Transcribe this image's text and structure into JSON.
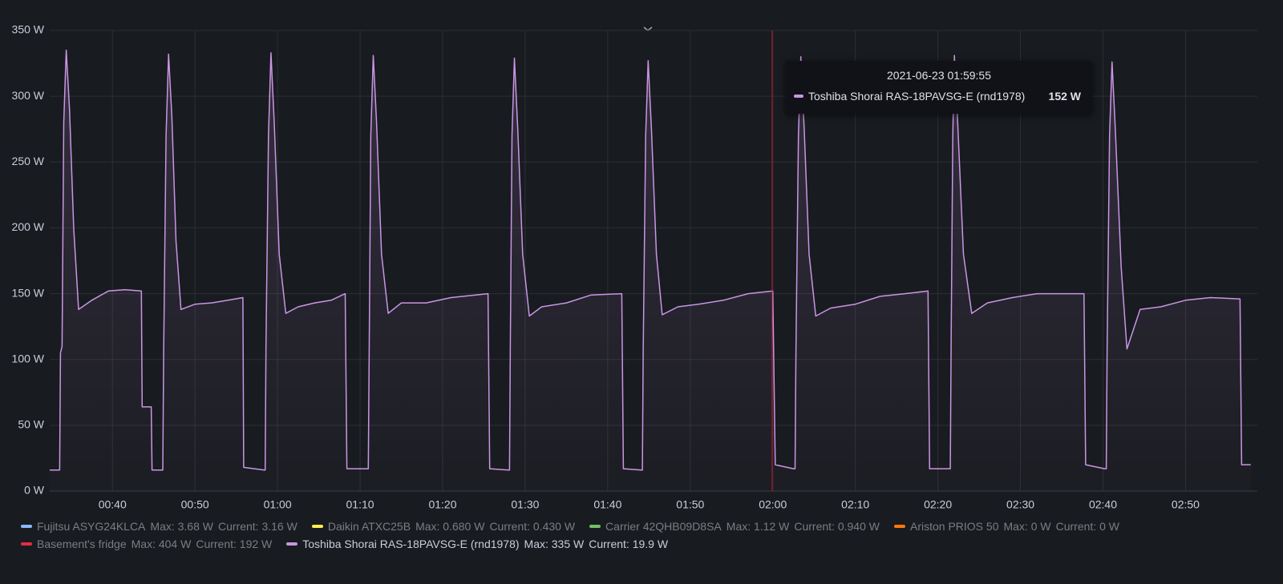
{
  "chart_data": {
    "type": "line",
    "xlim": [
      32.4,
      178.7
    ],
    "ylim": [
      0,
      350
    ],
    "yticks": [
      {
        "value": 0,
        "label": "0 W"
      },
      {
        "value": 50,
        "label": "50 W"
      },
      {
        "value": 100,
        "label": "100 W"
      },
      {
        "value": 150,
        "label": "150 W"
      },
      {
        "value": 200,
        "label": "200 W"
      },
      {
        "value": 250,
        "label": "250 W"
      },
      {
        "value": 300,
        "label": "300 W"
      },
      {
        "value": 350,
        "label": "350 W"
      }
    ],
    "xticks": [
      {
        "value": 40,
        "label": "00:40"
      },
      {
        "value": 50,
        "label": "00:50"
      },
      {
        "value": 60,
        "label": "01:00"
      },
      {
        "value": 70,
        "label": "01:10"
      },
      {
        "value": 80,
        "label": "01:20"
      },
      {
        "value": 90,
        "label": "01:30"
      },
      {
        "value": 100,
        "label": "01:40"
      },
      {
        "value": 110,
        "label": "01:50"
      },
      {
        "value": 120,
        "label": "02:00"
      },
      {
        "value": 130,
        "label": "02:10"
      },
      {
        "value": 140,
        "label": "02:20"
      },
      {
        "value": 150,
        "label": "02:30"
      },
      {
        "value": 160,
        "label": "02:40"
      },
      {
        "value": 170,
        "label": "02:50"
      }
    ],
    "grid": true,
    "x": [
      32.4,
      33.6,
      33.7,
      33.9,
      34.1,
      34.4,
      34.8,
      35.3,
      35.9,
      37.5,
      39.5,
      41.5,
      43.5,
      43.6,
      44.7,
      44.8,
      45.9,
      46.1,
      46.2,
      46.5,
      46.8,
      47.2,
      47.7,
      48.3,
      50.0,
      52.0,
      54.0,
      55.8,
      55.9,
      58.4,
      58.5,
      58.6,
      58.9,
      59.2,
      59.6,
      60.2,
      61.0,
      62.5,
      64.5,
      66.5,
      68.2,
      68.4,
      70.9,
      71.0,
      71.1,
      71.3,
      71.6,
      72.0,
      72.6,
      73.4,
      75.0,
      78.0,
      81.0,
      85.5,
      85.7,
      88.0,
      88.1,
      88.2,
      88.4,
      88.7,
      89.1,
      89.7,
      90.5,
      92.0,
      95.0,
      98.0,
      101.7,
      101.9,
      104.1,
      104.2,
      104.3,
      104.6,
      104.9,
      105.3,
      105.9,
      106.6,
      108.5,
      111.0,
      114.0,
      117.0,
      120.0,
      120.3,
      122.5,
      122.7,
      122.8,
      123.1,
      123.4,
      123.8,
      124.4,
      125.2,
      127.0,
      130.0,
      133.0,
      136.0,
      138.8,
      139.0,
      141.4,
      141.5,
      141.6,
      141.8,
      142.0,
      142.4,
      143.1,
      144.1,
      146.0,
      149.0,
      152.0,
      155.0,
      157.7,
      157.9,
      160.2,
      160.4,
      160.5,
      160.8,
      161.1,
      161.5,
      162.2,
      162.9,
      164.5,
      167.0,
      170.0,
      173.0,
      176.6,
      176.8,
      177.9
    ],
    "series": [
      {
        "name": "Fujitsu ASYG24KLCA",
        "color": "#8ab8ff",
        "max": "Max: 3.68 W",
        "current": "Current: 3.16 W",
        "hidden": true
      },
      {
        "name": "Daikin ATXC25B",
        "color": "#ffee52",
        "max": "Max: 0.680 W",
        "current": "Current: 0.430 W",
        "hidden": true
      },
      {
        "name": "Carrier 42QHB09D8SA",
        "color": "#73bf69",
        "max": "Max: 1.12 W",
        "current": "Current: 0.940 W",
        "hidden": true
      },
      {
        "name": "Ariston PRIOS 50",
        "color": "#ff780a",
        "max": "Max: 0 W",
        "current": "Current: 0 W",
        "hidden": true
      },
      {
        "name": "Basement's fridge",
        "color": "#e02f44",
        "max": "Max: 404 W",
        "current": "Current: 192 W",
        "hidden": true
      },
      {
        "name": "Toshiba Shorai RAS-18PAVSG-E (rnd1978)",
        "color": "#ca95e5",
        "max": "Max: 335 W",
        "current": "Current: 19.9 W",
        "hidden": false,
        "values": [
          16,
          16,
          105,
          110,
          280,
          335,
          290,
          200,
          138,
          145,
          152,
          153,
          152,
          64,
          64,
          16,
          16,
          16,
          105,
          270,
          332,
          285,
          190,
          138,
          142,
          143,
          145,
          147,
          18,
          16,
          16,
          110,
          270,
          333,
          280,
          180,
          135,
          140,
          143,
          145,
          150,
          17,
          17,
          17,
          105,
          270,
          331,
          280,
          180,
          135,
          143,
          143,
          147,
          150,
          17,
          16,
          16,
          110,
          270,
          329,
          275,
          180,
          133,
          140,
          143,
          149,
          150,
          17,
          16,
          16,
          105,
          270,
          327,
          275,
          180,
          134,
          140,
          142,
          145,
          150,
          152,
          20,
          17,
          17,
          105,
          270,
          330,
          275,
          180,
          133,
          139,
          142,
          148,
          150,
          152,
          17,
          17,
          17,
          110,
          270,
          331,
          280,
          180,
          135,
          143,
          147,
          150,
          150,
          150,
          20,
          17,
          17,
          110,
          270,
          326,
          275,
          170,
          108,
          138,
          140,
          145,
          147,
          146,
          20,
          20
        ]
      }
    ],
    "tooltip": {
      "x": 119.92,
      "title": "2021-06-23 01:59:55",
      "series_index": 5,
      "value": "152 W"
    }
  }
}
